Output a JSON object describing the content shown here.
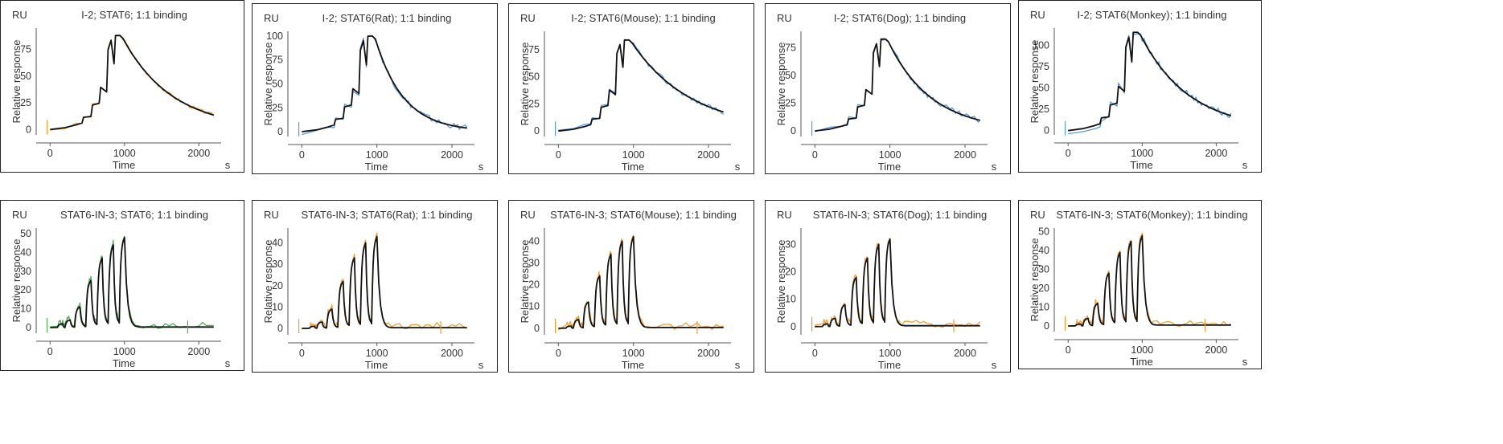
{
  "figure": {
    "common": {
      "unit_label": "RU",
      "ylabel": "Relative response",
      "xlabel": "Time",
      "xunit": "s",
      "xticks": [
        "0",
        "1000",
        "2000"
      ],
      "fit_color": "#111111"
    }
  },
  "chart_data": [
    {
      "type": "line",
      "title": "I-2; STAT6; 1:1 binding",
      "profile": "peak",
      "ymax": 88,
      "yticks": [
        "0",
        "25",
        "50",
        "75"
      ],
      "ylim": [
        -5,
        95
      ],
      "xlim": [
        -100,
        2300
      ],
      "data_color": "#f0a030",
      "noise": 1.5,
      "series": [
        {
          "name": "response",
          "x": [
            0,
            400,
            500,
            600,
            700,
            800,
            850,
            900,
            950,
            1000,
            1500,
            2200
          ],
          "values": [
            0,
            5,
            12,
            20,
            38,
            82,
            65,
            88,
            88,
            80,
            35,
            15
          ]
        },
        {
          "name": "1:1 fit",
          "x": [
            0,
            400,
            500,
            600,
            700,
            800,
            850,
            900,
            950,
            1000,
            1500,
            2200
          ],
          "values": [
            0,
            4,
            11,
            19,
            36,
            83,
            62,
            85,
            86,
            79,
            34,
            14
          ]
        }
      ]
    },
    {
      "type": "line",
      "title": "I-2; STAT6(Rat); 1:1 binding",
      "profile": "peak",
      "ymax": 100,
      "yticks": [
        "0",
        "25",
        "50",
        "75",
        "100"
      ],
      "ylim": [
        -5,
        105
      ],
      "xlim": [
        -100,
        2300
      ],
      "data_color": "#5b9bd5",
      "noise": 3,
      "series": [
        {
          "name": "response",
          "x": [
            0,
            400,
            500,
            600,
            700,
            800,
            850,
            900,
            950,
            1000,
            1500,
            2200
          ],
          "values": [
            3,
            7,
            14,
            25,
            45,
            88,
            70,
            100,
            100,
            70,
            20,
            6
          ]
        },
        {
          "name": "1:1 fit",
          "x": [
            0,
            400,
            500,
            600,
            700,
            800,
            850,
            900,
            950,
            1000,
            1500,
            2200
          ],
          "values": [
            0,
            4,
            12,
            23,
            43,
            88,
            70,
            100,
            100,
            68,
            17,
            4
          ]
        }
      ]
    },
    {
      "type": "line",
      "title": "I-2; STAT6(Mouse); 1:1 binding",
      "profile": "peak",
      "ymax": 84,
      "yticks": [
        "0",
        "25",
        "50",
        "75"
      ],
      "ylim": [
        -5,
        92
      ],
      "xlim": [
        -100,
        2300
      ],
      "data_color": "#5b9bd5",
      "noise": 2,
      "series": [
        {
          "name": "response",
          "x": [
            0,
            400,
            500,
            600,
            700,
            800,
            850,
            900,
            950,
            1000,
            1500,
            2200
          ],
          "values": [
            1,
            5,
            12,
            22,
            40,
            82,
            72,
            84,
            84,
            72,
            40,
            18
          ]
        },
        {
          "name": "1:1 fit",
          "x": [
            0,
            400,
            500,
            600,
            700,
            800,
            850,
            900,
            950,
            1000,
            1500,
            2200
          ],
          "values": [
            0,
            4,
            11,
            21,
            38,
            81,
            71,
            83,
            83,
            71,
            39,
            18
          ]
        }
      ]
    },
    {
      "type": "line",
      "title": "I-2; STAT6(Dog); 1:1 binding",
      "profile": "peak",
      "ymax": 83,
      "yticks": [
        "0",
        "25",
        "50",
        "75"
      ],
      "ylim": [
        -5,
        90
      ],
      "xlim": [
        -100,
        2300
      ],
      "data_color": "#5b9bd5",
      "noise": 2.5,
      "series": [
        {
          "name": "response",
          "x": [
            0,
            400,
            500,
            600,
            700,
            800,
            850,
            900,
            950,
            1000,
            1500,
            2200
          ],
          "values": [
            2,
            6,
            12,
            22,
            40,
            80,
            68,
            83,
            83,
            68,
            30,
            11
          ]
        },
        {
          "name": "1:1 fit",
          "x": [
            0,
            400,
            500,
            600,
            700,
            800,
            850,
            900,
            950,
            1000,
            1500,
            2200
          ],
          "values": [
            0,
            4,
            11,
            21,
            38,
            79,
            67,
            82,
            82,
            67,
            28,
            10
          ]
        }
      ]
    },
    {
      "type": "line",
      "title": "I-2; STAT6(Monkey); 1:1 binding",
      "profile": "peak",
      "ymax": 115,
      "yticks": [
        "0",
        "25",
        "50",
        "75",
        "100"
      ],
      "ylim": [
        -5,
        120
      ],
      "xlim": [
        -100,
        2300
      ],
      "data_color": "#5b9bd5",
      "noise": 4,
      "series": [
        {
          "name": "response",
          "x": [
            0,
            400,
            500,
            600,
            700,
            800,
            850,
            900,
            950,
            1000,
            1500,
            2200
          ],
          "values": [
            5,
            10,
            16,
            27,
            48,
            108,
            92,
            115,
            115,
            95,
            45,
            18
          ]
        },
        {
          "name": "1:1 fit",
          "x": [
            0,
            400,
            500,
            600,
            700,
            800,
            850,
            900,
            950,
            1000,
            1500,
            2200
          ],
          "values": [
            0,
            5,
            14,
            25,
            46,
            108,
            92,
            114,
            114,
            94,
            44,
            18
          ]
        }
      ]
    },
    {
      "type": "line",
      "title": "STAT6-IN-3; STAT6; 1:1 binding",
      "profile": "steps",
      "levels": [
        2,
        4,
        11,
        25,
        37,
        44,
        48
      ],
      "ymax": 48,
      "tail": 1,
      "yticks": [
        "0",
        "10",
        "20",
        "30",
        "40",
        "50"
      ],
      "ylim": [
        -3,
        53
      ],
      "xlim": [
        -100,
        2300
      ],
      "data_color": "#4caf50",
      "noise": 1,
      "mark_x": 1850,
      "series": [
        {
          "name": "response",
          "x": [
            0,
            1000,
            1100,
            1500,
            2200
          ],
          "values": [
            0,
            48,
            5,
            1.5,
            1.5
          ]
        },
        {
          "name": "1:1 fit",
          "x": [
            0,
            1000,
            1100,
            1500,
            2200
          ],
          "values": [
            0,
            47,
            4,
            0.5,
            0.5
          ]
        }
      ]
    },
    {
      "type": "line",
      "title": "STAT6-IN-3; STAT6(Rat); 1:1 binding",
      "profile": "steps",
      "levels": [
        1,
        3,
        9,
        22,
        33,
        40,
        43
      ],
      "ymax": 43,
      "tail": 1.2,
      "yticks": [
        "0",
        "10",
        "20",
        "30",
        "40"
      ],
      "ylim": [
        -3,
        47
      ],
      "xlim": [
        -100,
        2300
      ],
      "data_color": "#f0a030",
      "noise": 1,
      "mark_x": 1850,
      "series": [
        {
          "name": "response",
          "x": [
            0,
            1000,
            1100,
            1500,
            2200
          ],
          "values": [
            0,
            43,
            5,
            1.5,
            1.5
          ]
        },
        {
          "name": "1:1 fit",
          "x": [
            0,
            1000,
            1100,
            1500,
            2200
          ],
          "values": [
            0,
            43,
            4,
            0.2,
            0.2
          ]
        }
      ]
    },
    {
      "type": "line",
      "title": "STAT6-IN-3; STAT6(Mouse); 1:1 binding",
      "profile": "steps",
      "levels": [
        1,
        4,
        12,
        24,
        34,
        40,
        42
      ],
      "ymax": 42,
      "tail": 1.2,
      "yticks": [
        "0",
        "10",
        "20",
        "30",
        "40"
      ],
      "ylim": [
        -3,
        46
      ],
      "xlim": [
        -100,
        2300
      ],
      "data_color": "#f0a030",
      "noise": 1,
      "mark_x": 1850,
      "series": [
        {
          "name": "response",
          "x": [
            0,
            1000,
            1100,
            1500,
            2200
          ],
          "values": [
            0,
            42,
            5,
            1.5,
            1.5
          ]
        },
        {
          "name": "1:1 fit",
          "x": [
            0,
            1000,
            1100,
            1500,
            2200
          ],
          "values": [
            0,
            42,
            4,
            0.2,
            0.2
          ]
        }
      ]
    },
    {
      "type": "line",
      "title": "STAT6-IN-3; STAT6(Dog); 1:1 binding",
      "profile": "steps",
      "levels": [
        1,
        3,
        8,
        18,
        25,
        30,
        32
      ],
      "ymax": 32,
      "tail": 1,
      "yticks": [
        "0",
        "10",
        "20",
        "30"
      ],
      "ylim": [
        -3,
        36
      ],
      "xlim": [
        -100,
        2300
      ],
      "data_color": "#f0a030",
      "noise": 1,
      "mark_x": 1850,
      "series": [
        {
          "name": "response",
          "x": [
            0,
            1000,
            1100,
            1500,
            2200
          ],
          "values": [
            0,
            32,
            4,
            1,
            1
          ]
        },
        {
          "name": "1:1 fit",
          "x": [
            0,
            1000,
            1100,
            1500,
            2200
          ],
          "values": [
            0,
            32,
            3,
            0.2,
            0.2
          ]
        }
      ]
    },
    {
      "type": "line",
      "title": "STAT6-IN-3; STAT6(Monkey); 1:1 binding",
      "profile": "steps",
      "levels": [
        1,
        4,
        12,
        28,
        39,
        45,
        48
      ],
      "ymax": 48,
      "tail": 1.5,
      "yticks": [
        "0",
        "10",
        "20",
        "30",
        "40",
        "50"
      ],
      "ylim": [
        -3,
        52
      ],
      "xlim": [
        -100,
        2300
      ],
      "data_color": "#f0a030",
      "noise": 1.2,
      "mark_x": 1850,
      "series": [
        {
          "name": "response",
          "x": [
            0,
            1000,
            1100,
            1500,
            2200
          ],
          "values": [
            0,
            48,
            5,
            1.5,
            1.5
          ]
        },
        {
          "name": "1:1 fit",
          "x": [
            0,
            1000,
            1100,
            1500,
            2200
          ],
          "values": [
            0,
            48,
            4,
            0.2,
            0.2
          ]
        }
      ]
    }
  ]
}
